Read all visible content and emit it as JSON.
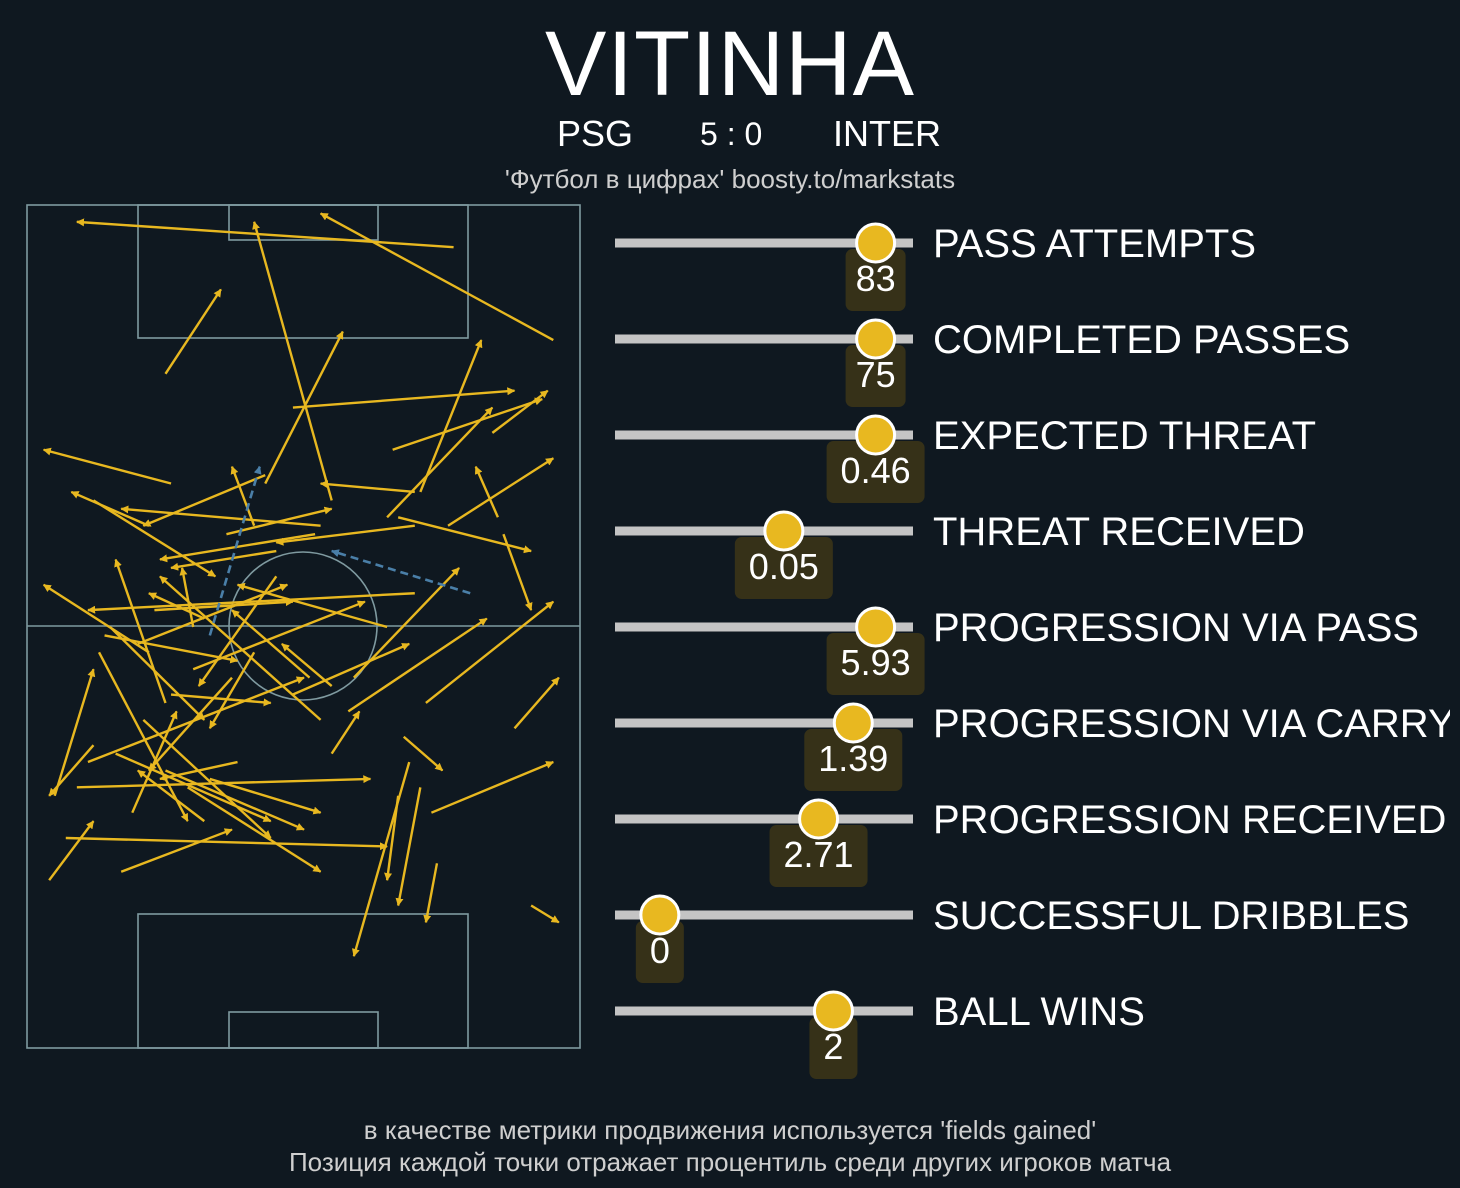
{
  "header": {
    "title": "VITINHA",
    "home_team": "PSG",
    "score": "5 : 0",
    "away_team": "INTER",
    "credit": "'Футбол в цифрах' boosty.to/markstats"
  },
  "colors": {
    "background": "#0f1820",
    "pitch_lines": "#7f9aa0",
    "pass_arrow": "#e8b820",
    "carry_arrow": "#4a7fa8",
    "bar_track": "#c4c4c4",
    "marker": "#e8b820",
    "value_box": "#3a3418"
  },
  "chart_data": [
    {
      "type": "scatter",
      "grid": false,
      "pitch": {
        "length": 100,
        "width": 100,
        "orientation": "vertical, attacking upward"
      },
      "passes": [
        [
          77,
          95,
          9,
          98
        ],
        [
          55,
          65,
          41,
          98
        ],
        [
          95,
          84,
          53,
          99
        ],
        [
          48,
          76,
          88,
          78
        ],
        [
          25,
          80,
          35,
          90
        ],
        [
          43,
          67,
          57,
          85
        ],
        [
          71,
          66,
          82,
          84
        ],
        [
          66,
          71,
          93,
          77
        ],
        [
          84,
          73,
          94,
          78
        ],
        [
          65,
          63,
          84,
          76
        ],
        [
          76,
          62,
          95,
          70
        ],
        [
          85,
          63,
          81,
          69
        ],
        [
          26,
          67,
          3,
          71
        ],
        [
          43,
          68,
          21,
          62
        ],
        [
          36,
          61,
          55,
          64
        ],
        [
          41,
          62,
          37,
          69
        ],
        [
          70,
          66,
          53,
          67
        ],
        [
          70,
          62,
          45,
          60
        ],
        [
          53,
          62,
          17,
          64
        ],
        [
          22,
          62,
          8,
          66
        ],
        [
          12,
          65,
          34,
          56
        ],
        [
          52,
          61,
          24,
          58
        ],
        [
          67,
          63,
          91,
          59
        ],
        [
          45,
          59,
          26,
          57
        ],
        [
          86,
          61,
          91,
          52
        ],
        [
          70,
          54,
          11,
          52
        ],
        [
          32,
          51,
          22,
          54
        ],
        [
          22,
          47,
          3,
          55
        ],
        [
          45,
          56,
          31,
          43
        ],
        [
          20,
          48,
          47,
          55
        ],
        [
          25,
          41,
          16,
          58
        ],
        [
          14,
          49,
          38,
          46
        ],
        [
          65,
          50,
          38,
          55
        ],
        [
          23,
          52,
          48,
          53
        ],
        [
          30,
          45,
          61,
          53
        ],
        [
          15,
          50,
          32,
          39
        ],
        [
          30,
          50,
          28,
          57
        ],
        [
          41,
          47,
          33,
          38
        ],
        [
          26,
          42,
          44,
          41
        ],
        [
          51,
          44,
          37,
          52
        ],
        [
          58,
          40,
          83,
          51
        ],
        [
          72,
          41,
          95,
          53
        ],
        [
          59,
          44,
          78,
          57
        ],
        [
          48,
          42,
          69,
          48
        ],
        [
          53,
          39,
          24,
          56
        ],
        [
          13,
          47,
          29,
          27
        ],
        [
          11,
          34,
          50,
          44
        ],
        [
          16,
          35,
          44,
          27
        ],
        [
          29,
          31,
          53,
          21
        ],
        [
          21,
          39,
          44,
          25
        ],
        [
          25,
          33,
          50,
          26
        ],
        [
          9,
          31,
          62,
          32
        ],
        [
          19,
          28,
          27,
          40
        ],
        [
          38,
          34,
          24,
          32
        ],
        [
          37,
          44,
          22,
          33
        ],
        [
          33,
          32,
          53,
          28
        ],
        [
          55,
          43,
          46,
          48
        ],
        [
          55,
          35,
          60,
          40
        ],
        [
          88,
          38,
          96,
          44
        ],
        [
          73,
          28,
          95,
          34
        ],
        [
          67,
          30,
          65,
          20
        ],
        [
          68,
          37,
          75,
          33
        ],
        [
          71,
          31,
          67,
          17
        ],
        [
          74,
          22,
          72,
          15
        ],
        [
          5,
          30,
          12,
          45
        ],
        [
          12,
          36,
          4,
          30
        ],
        [
          7,
          25,
          65,
          24
        ],
        [
          4,
          20,
          12,
          27
        ],
        [
          17,
          21,
          37,
          26
        ],
        [
          69,
          34,
          59,
          11
        ],
        [
          91,
          17,
          96,
          15
        ],
        [
          32,
          27,
          20,
          33
        ]
      ],
      "carries": [
        [
          33,
          49,
          42,
          69
        ],
        [
          80,
          54,
          55,
          59
        ]
      ]
    },
    {
      "type": "bar",
      "grid": false,
      "scale": "percentile 0–100",
      "categories": [
        "PASS ATTEMPTS",
        "COMPLETED PASSES",
        "EXPECTED THREAT",
        "THREAT RECEIVED",
        "PROGRESSION VIA PASS",
        "PROGRESSION VIA CARRY",
        "PROGRESSION RECEIVED",
        "SUCCESSFUL DRIBBLES",
        "BALL WINS"
      ],
      "labels": [
        "83",
        "75",
        "0.46",
        "0.05",
        "5.93",
        "1.39",
        "2.71",
        "0",
        "2"
      ],
      "percentiles": [
        95,
        95,
        95,
        58,
        95,
        86,
        72,
        8,
        78
      ]
    }
  ],
  "footnote": {
    "line1": "в качестве метрики продвижения используется 'fields gained'",
    "line2": "Позиция каждой точки отражает процентиль среди других игроков матча"
  }
}
